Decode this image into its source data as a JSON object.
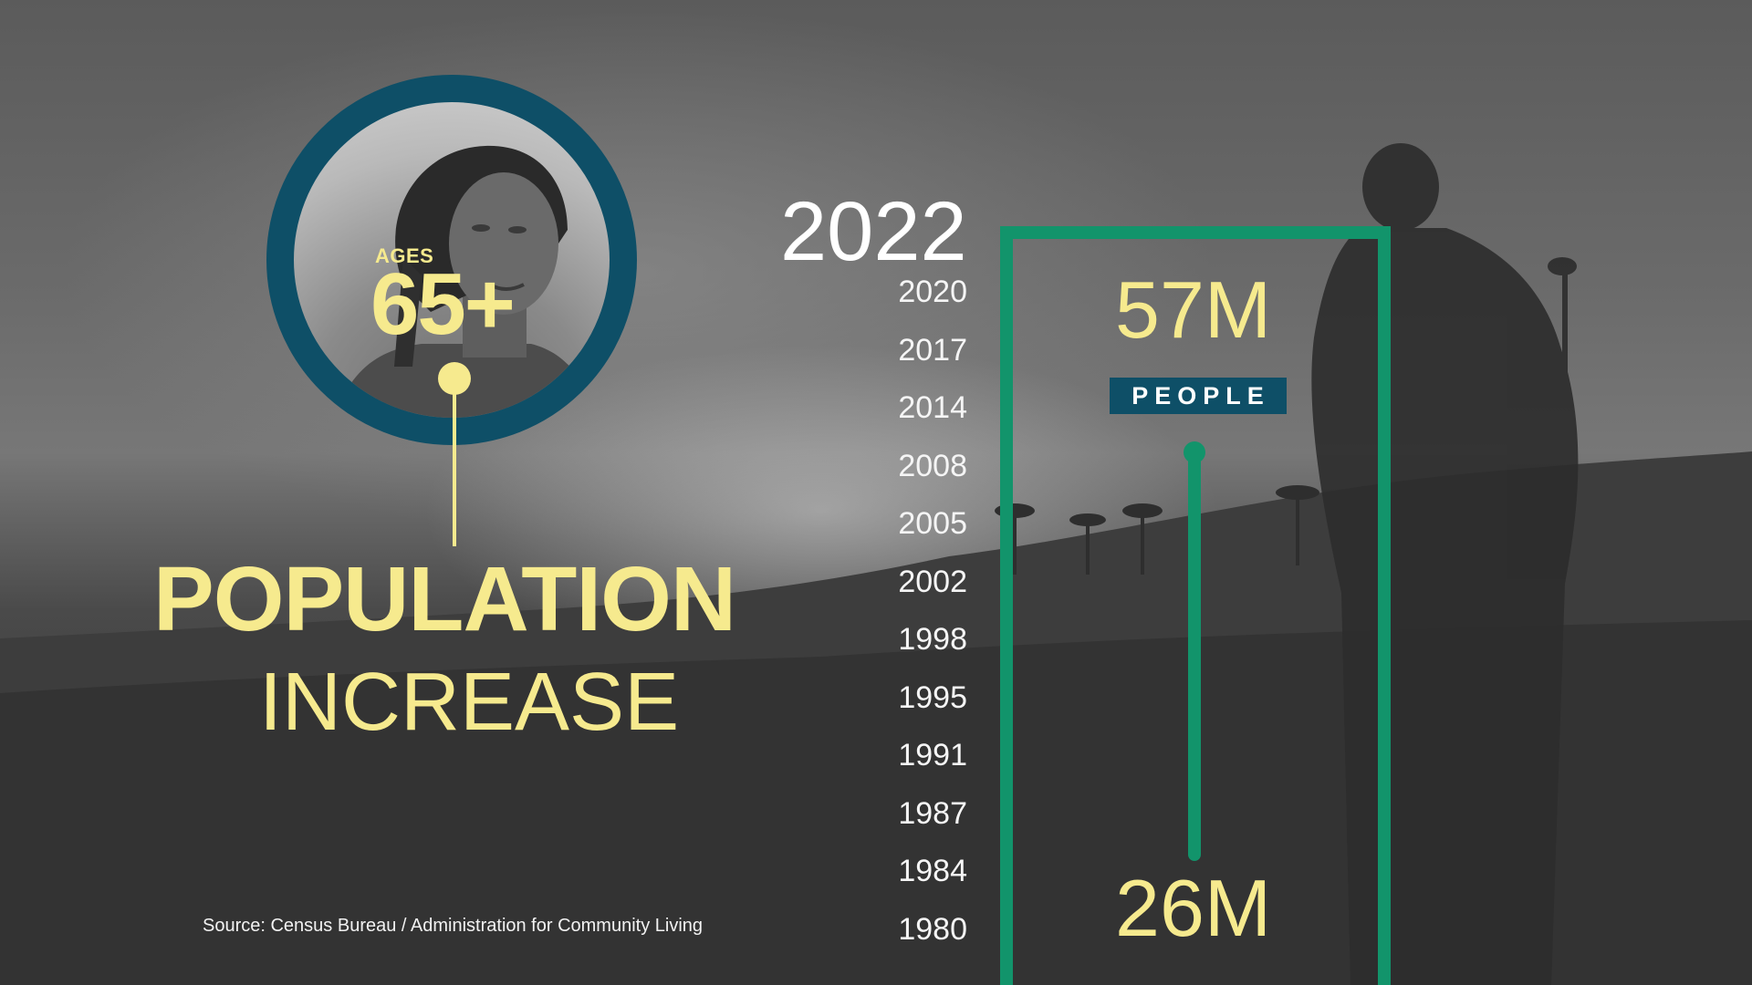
{
  "header": {
    "year": "2022"
  },
  "badge": {
    "ages_label": "AGES",
    "ages_value": "65+"
  },
  "title": {
    "main": "POPULATION",
    "sub": "INCREASE"
  },
  "years": [
    "2020",
    "2017",
    "2014",
    "2008",
    "2005",
    "2002",
    "1998",
    "1995",
    "1991",
    "1987",
    "1984",
    "1980"
  ],
  "values": {
    "top": "57M",
    "unit": "PEOPLE",
    "bottom": "26M"
  },
  "source": "Source: Census Bureau / Administration for Community Living",
  "colors": {
    "accent_yellow": "#f6ea8e",
    "accent_green": "#12946b",
    "accent_teal": "#0e4f67"
  }
}
